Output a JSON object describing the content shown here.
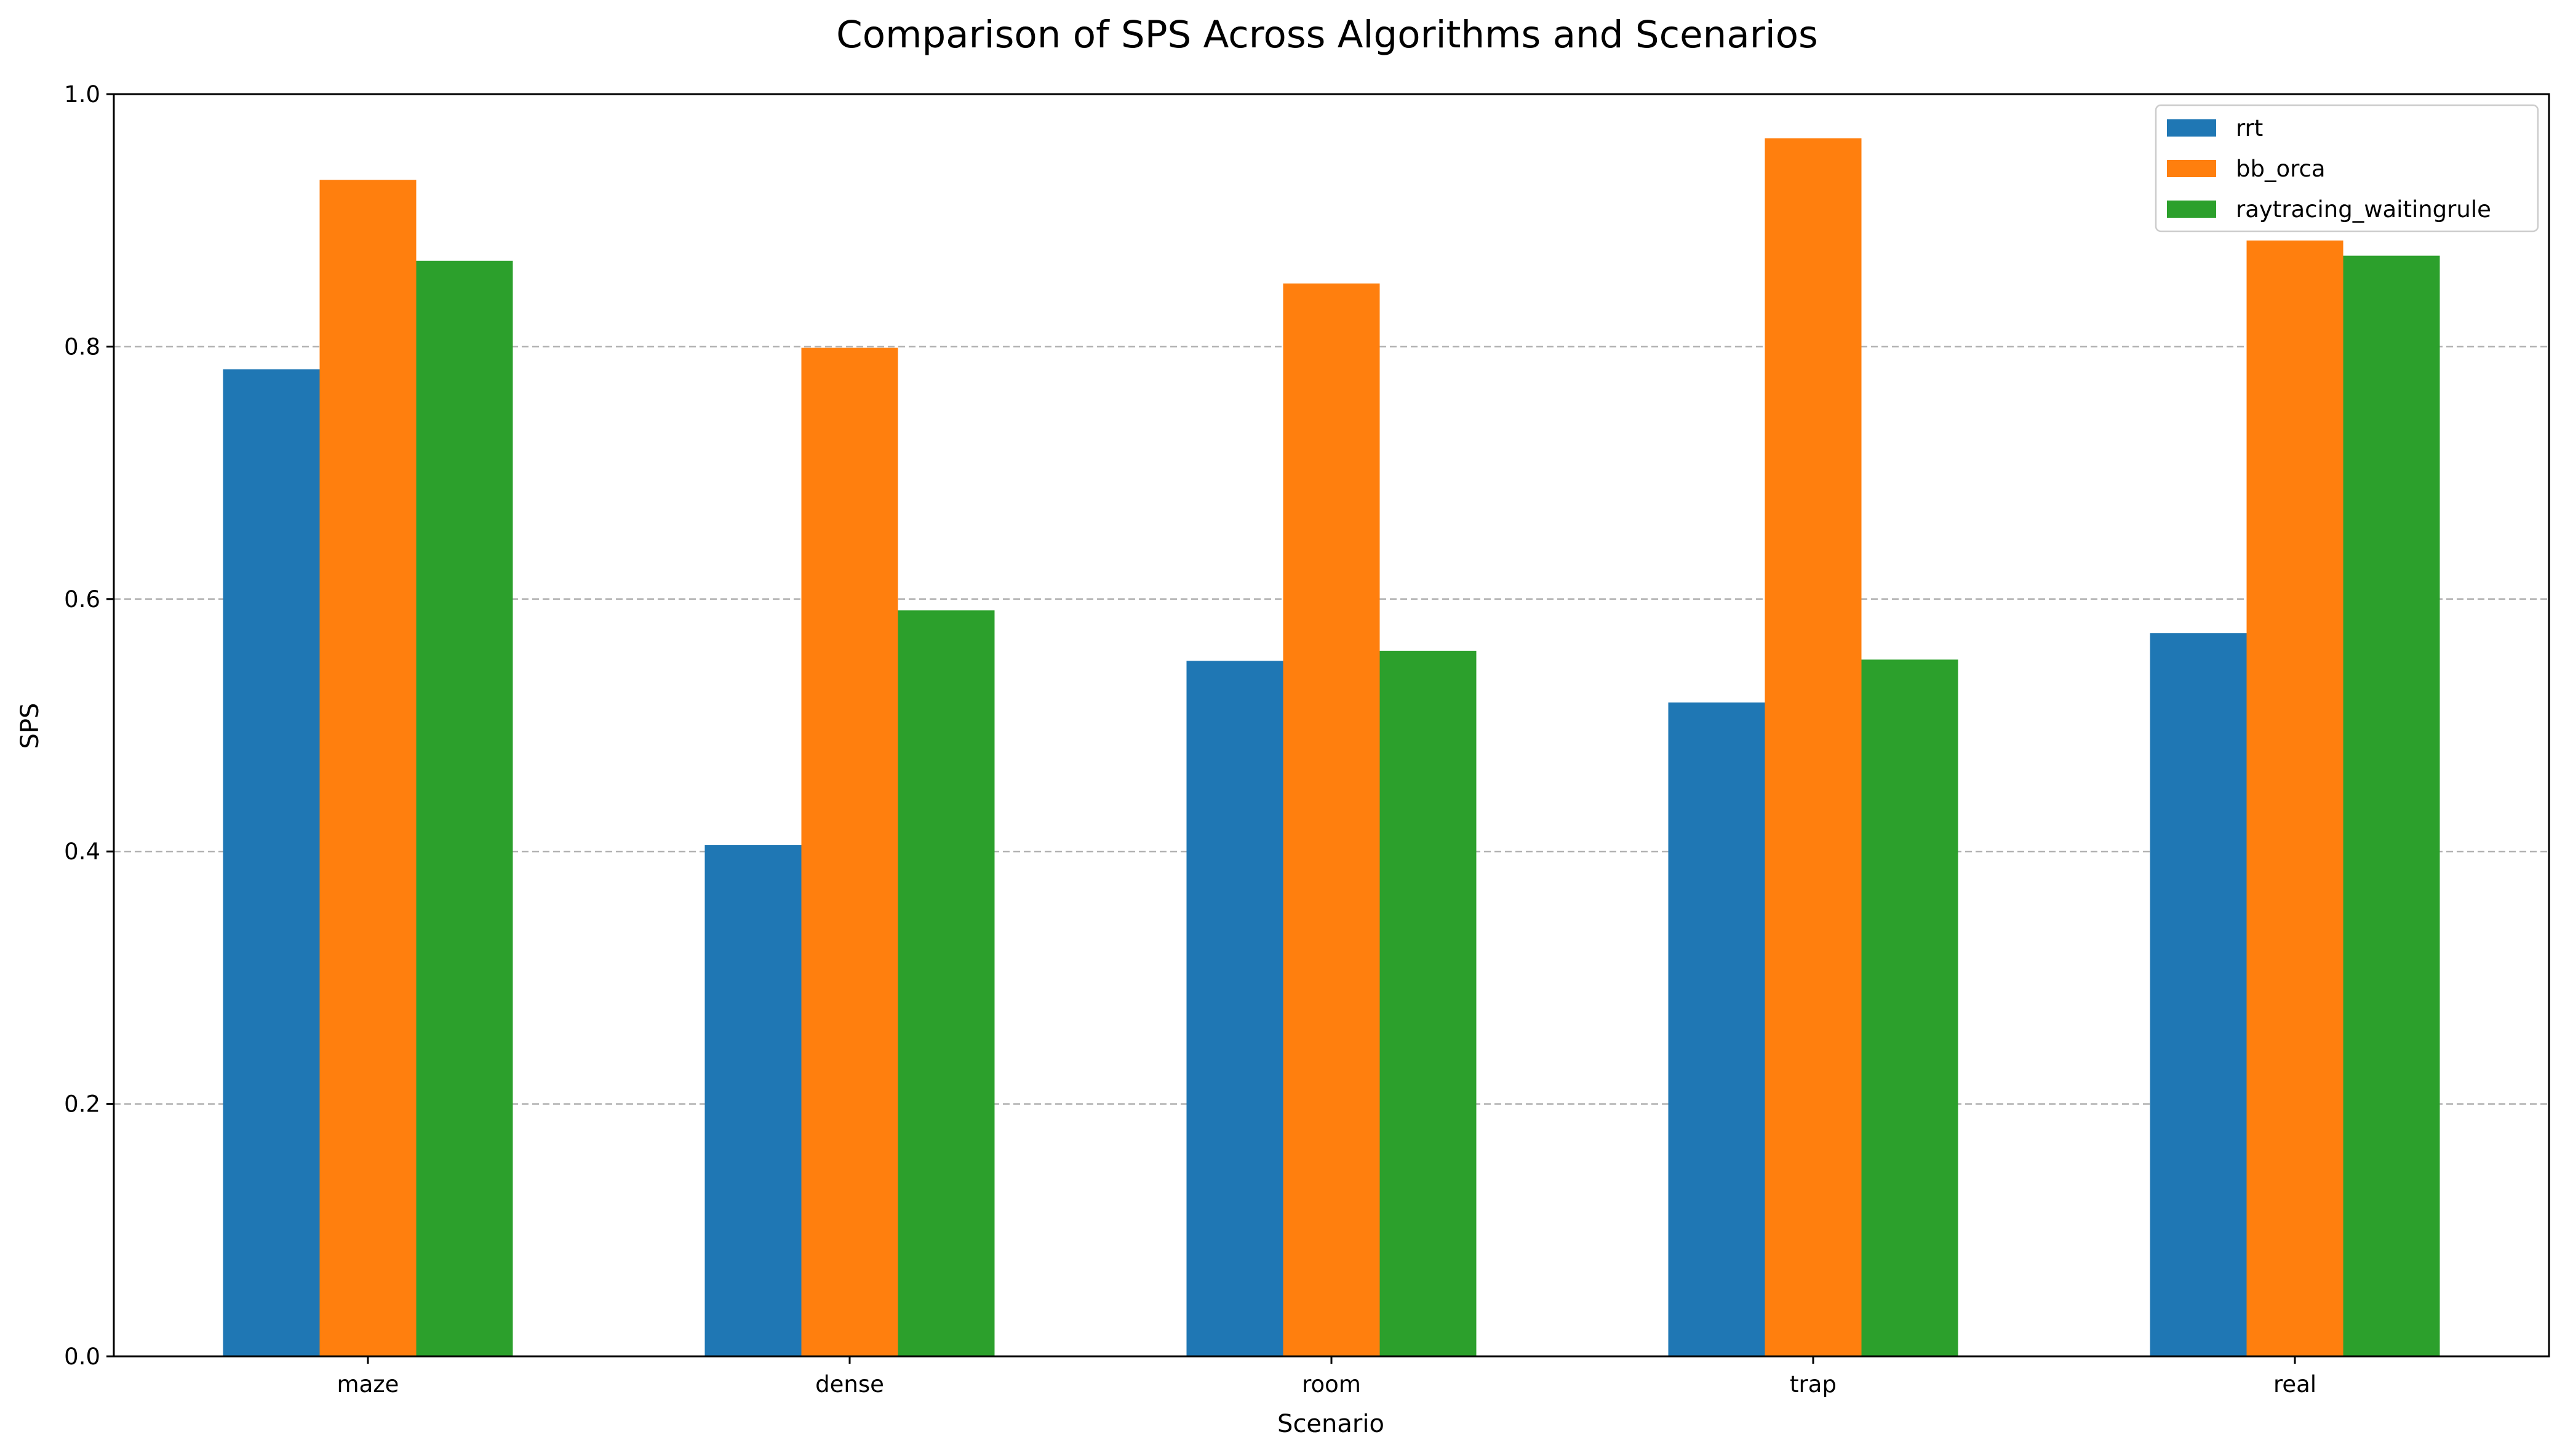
{
  "chart_data": {
    "type": "bar",
    "title": "Comparison of SPS Across Algorithms and Scenarios",
    "xlabel": "Scenario",
    "ylabel": "SPS",
    "categories": [
      "maze",
      "dense",
      "room",
      "trap",
      "real"
    ],
    "series": [
      {
        "name": "rrt",
        "color": "#1f77b4",
        "values": [
          0.782,
          0.405,
          0.551,
          0.518,
          0.573
        ]
      },
      {
        "name": "bb_orca",
        "color": "#ff7f0e",
        "values": [
          0.932,
          0.799,
          0.85,
          0.965,
          0.884
        ]
      },
      {
        "name": "raytracing_waitingrule",
        "color": "#2ca02c",
        "values": [
          0.868,
          0.591,
          0.559,
          0.552,
          0.872
        ]
      }
    ],
    "ylim": [
      0,
      1.0
    ],
    "yticks": [
      "0.0",
      "0.2",
      "0.4",
      "0.6",
      "0.8",
      "1.0"
    ],
    "grid": "y-dashed",
    "legend_position": "top-right"
  }
}
